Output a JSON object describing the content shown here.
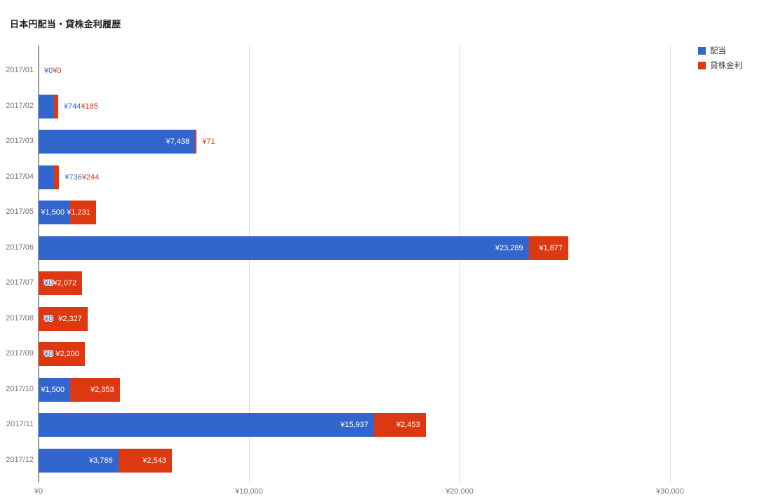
{
  "chart_data": {
    "type": "bar",
    "orientation": "horizontal",
    "stacked": true,
    "title": "日本円配当・貸株金利履歴",
    "categories": [
      "2017/01",
      "2017/02",
      "2017/03",
      "2017/04",
      "2017/05",
      "2017/06",
      "2017/07",
      "2017/08",
      "2017/09",
      "2017/10",
      "2017/11",
      "2017/12"
    ],
    "series": [
      {
        "name": "配当",
        "color": "#3366CC",
        "values": [
          0,
          744,
          7438,
          736,
          1500,
          23289,
          0,
          0,
          0,
          1500,
          15937,
          3786
        ]
      },
      {
        "name": "貸株金利",
        "color": "#DC3912",
        "values": [
          0,
          185,
          71,
          244,
          1231,
          1877,
          2072,
          2327,
          2200,
          2353,
          2453,
          2543
        ]
      }
    ],
    "value_prefix": "¥",
    "x_ticks": [
      "¥0",
      "¥10,000",
      "¥20,000",
      "¥30,000"
    ],
    "x_tick_values": [
      0,
      10000,
      20000,
      30000
    ],
    "xlim": [
      0,
      30000
    ],
    "grid": true,
    "legend_position": "top-right",
    "annotations": {
      "dividend_labels": [
        "¥0",
        "¥744",
        "¥7,438",
        "¥736",
        "¥1,500",
        "¥23,289",
        "¥0",
        "¥0",
        "¥0",
        "¥1,500",
        "¥15,937",
        "¥3,786"
      ],
      "interest_labels": [
        "¥0",
        "¥185",
        "¥71",
        "¥244",
        "¥1,231",
        "¥1,877",
        "¥2,072",
        "¥2,327",
        "¥2,200",
        "¥2,353",
        "¥2,453",
        "¥2,543"
      ]
    },
    "colors": {
      "axis_text": "#757575",
      "gridline": "#e0e0e0",
      "axis_line": "#9e9e9e",
      "inside_label": "#ffffff",
      "title_text": "#212121",
      "legend_text": "#3c3c3c"
    }
  }
}
